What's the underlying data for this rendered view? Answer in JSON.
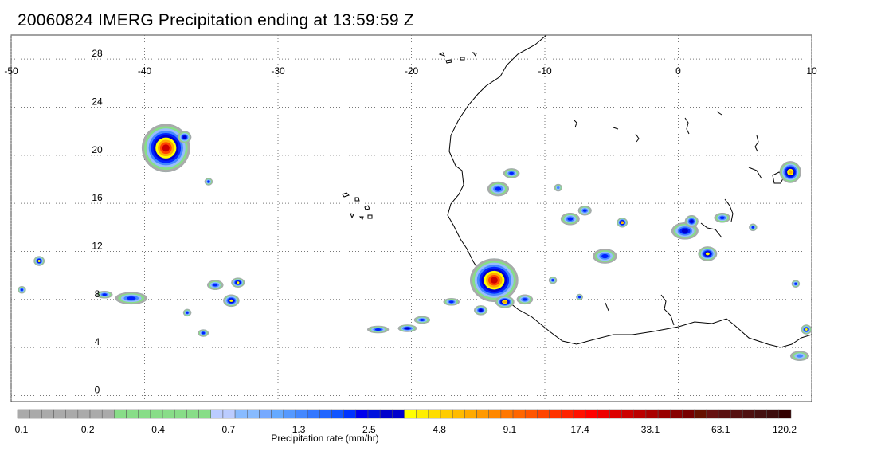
{
  "title": "20060824 IMERG Precipitation ending at 13:59:59 Z",
  "map": {
    "lon_labels": [
      "-50",
      "-40",
      "-30",
      "-20",
      "-10",
      "0",
      "10"
    ],
    "lat_labels": [
      "28",
      "24",
      "20",
      "16",
      "12",
      "8",
      "4",
      "0"
    ],
    "lon_values": [
      -50,
      -40,
      -30,
      -20,
      -10,
      0,
      10
    ],
    "lat_values": [
      28,
      24,
      20,
      16,
      12,
      8,
      4,
      0
    ],
    "lon_range": [
      -50,
      10
    ],
    "lat_range": [
      -0.5,
      30
    ],
    "gridlines": "dotted",
    "features": [
      "West African coastline",
      "Cape Verde islands",
      "Canary islands",
      "rivers and lakes"
    ]
  },
  "colorbar": {
    "label": "Precipitation rate (mm/hr)",
    "tick_labels": [
      "0.1",
      "0.2",
      "0.4",
      "0.7",
      "1.3",
      "2.5",
      "4.8",
      "9.1",
      "17.4",
      "33.1",
      "63.1",
      "120.2"
    ],
    "colors": [
      "#aaaaaa",
      "#aaaaaa",
      "#aaaaaa",
      "#aaaaaa",
      "#aaaaaa",
      "#aaaaaa",
      "#aaaaaa",
      "#aaaaaa",
      "#88dd88",
      "#88dd88",
      "#88dd88",
      "#88dd88",
      "#88dd88",
      "#88dd88",
      "#88dd88",
      "#88dd88",
      "#bbccff",
      "#bbccff",
      "#88bbff",
      "#88bbff",
      "#77aaff",
      "#66aaff",
      "#5599ff",
      "#4488ff",
      "#3377ff",
      "#2266ff",
      "#1155ff",
      "#0033ff",
      "#0000ee",
      "#0011dd",
      "#0000cc",
      "#0000cc",
      "#ffff00",
      "#ffee00",
      "#ffdd00",
      "#ffcc00",
      "#ffbb00",
      "#ffaa00",
      "#ff9900",
      "#ff8800",
      "#ff7700",
      "#ff6600",
      "#ff5500",
      "#ff4400",
      "#ff3300",
      "#ff2200",
      "#ff1100",
      "#ff0000",
      "#ee0000",
      "#dd0000",
      "#cc0000",
      "#bb0000",
      "#aa0000",
      "#990000",
      "#880000",
      "#770000",
      "#661100",
      "#661111",
      "#5a1010",
      "#551111",
      "#4d1010",
      "#441010",
      "#3d0d0d",
      "#330000"
    ]
  },
  "precip_cells": [
    {
      "lon": -38.4,
      "lat": 20.6,
      "rx": 1.8,
      "ry": 2.0,
      "peak": 33
    },
    {
      "lon": -37.0,
      "lat": 21.5,
      "rx": 0.5,
      "ry": 0.5,
      "peak": 4
    },
    {
      "lon": -35.2,
      "lat": 17.8,
      "rx": 0.3,
      "ry": 0.3,
      "peak": 3
    },
    {
      "lon": -47.9,
      "lat": 11.2,
      "rx": 0.4,
      "ry": 0.4,
      "peak": 5
    },
    {
      "lon": -49.2,
      "lat": 8.8,
      "rx": 0.3,
      "ry": 0.3,
      "peak": 3
    },
    {
      "lon": -41.0,
      "lat": 8.1,
      "rx": 1.2,
      "ry": 0.5,
      "peak": 3
    },
    {
      "lon": -43.0,
      "lat": 8.4,
      "rx": 0.6,
      "ry": 0.3,
      "peak": 2
    },
    {
      "lon": -33.5,
      "lat": 7.9,
      "rx": 0.6,
      "ry": 0.5,
      "peak": 8
    },
    {
      "lon": -33.0,
      "lat": 9.4,
      "rx": 0.5,
      "ry": 0.4,
      "peak": 6
    },
    {
      "lon": -34.7,
      "lat": 9.2,
      "rx": 0.6,
      "ry": 0.4,
      "peak": 2
    },
    {
      "lon": -35.6,
      "lat": 5.2,
      "rx": 0.4,
      "ry": 0.3,
      "peak": 3
    },
    {
      "lon": -36.8,
      "lat": 6.9,
      "rx": 0.3,
      "ry": 0.3,
      "peak": 2
    },
    {
      "lon": -22.5,
      "lat": 5.5,
      "rx": 0.8,
      "ry": 0.3,
      "peak": 3
    },
    {
      "lon": -20.3,
      "lat": 5.6,
      "rx": 0.7,
      "ry": 0.3,
      "peak": 4
    },
    {
      "lon": -19.2,
      "lat": 6.3,
      "rx": 0.6,
      "ry": 0.3,
      "peak": 3
    },
    {
      "lon": -17.0,
      "lat": 7.8,
      "rx": 0.6,
      "ry": 0.3,
      "peak": 2
    },
    {
      "lon": -13.8,
      "lat": 9.6,
      "rx": 1.8,
      "ry": 1.8,
      "peak": 33
    },
    {
      "lon": -13.0,
      "lat": 7.8,
      "rx": 0.7,
      "ry": 0.5,
      "peak": 9
    },
    {
      "lon": -14.8,
      "lat": 7.1,
      "rx": 0.5,
      "ry": 0.4,
      "peak": 4
    },
    {
      "lon": -11.5,
      "lat": 8.0,
      "rx": 0.6,
      "ry": 0.4,
      "peak": 3
    },
    {
      "lon": -13.5,
      "lat": 17.2,
      "rx": 0.8,
      "ry": 0.6,
      "peak": 2
    },
    {
      "lon": -12.5,
      "lat": 18.5,
      "rx": 0.6,
      "ry": 0.4,
      "peak": 2
    },
    {
      "lon": -8.1,
      "lat": 14.7,
      "rx": 0.7,
      "ry": 0.5,
      "peak": 3
    },
    {
      "lon": -7.0,
      "lat": 15.4,
      "rx": 0.5,
      "ry": 0.4,
      "peak": 2
    },
    {
      "lon": -5.5,
      "lat": 11.6,
      "rx": 0.9,
      "ry": 0.6,
      "peak": 3
    },
    {
      "lon": -4.2,
      "lat": 14.4,
      "rx": 0.4,
      "ry": 0.4,
      "peak": 10
    },
    {
      "lon": 0.5,
      "lat": 13.7,
      "rx": 1.0,
      "ry": 0.7,
      "peak": 4
    },
    {
      "lon": 1.0,
      "lat": 14.5,
      "rx": 0.5,
      "ry": 0.5,
      "peak": 4
    },
    {
      "lon": 2.2,
      "lat": 11.8,
      "rx": 0.7,
      "ry": 0.6,
      "peak": 6
    },
    {
      "lon": 3.3,
      "lat": 14.8,
      "rx": 0.6,
      "ry": 0.4,
      "peak": 3
    },
    {
      "lon": 5.6,
      "lat": 14.0,
      "rx": 0.3,
      "ry": 0.3,
      "peak": 2
    },
    {
      "lon": 8.4,
      "lat": 18.6,
      "rx": 0.8,
      "ry": 0.9,
      "peak": 12
    },
    {
      "lon": 8.8,
      "lat": 9.3,
      "rx": 0.3,
      "ry": 0.3,
      "peak": 3
    },
    {
      "lon": 9.6,
      "lat": 5.5,
      "rx": 0.4,
      "ry": 0.4,
      "peak": 5
    },
    {
      "lon": 9.1,
      "lat": 3.3,
      "rx": 0.7,
      "ry": 0.4,
      "peak": 1
    },
    {
      "lon": -9.4,
      "lat": 9.6,
      "rx": 0.3,
      "ry": 0.3,
      "peak": 2
    },
    {
      "lon": -7.4,
      "lat": 8.2,
      "rx": 0.25,
      "ry": 0.25,
      "peak": 3
    },
    {
      "lon": -9.0,
      "lat": 17.3,
      "rx": 0.3,
      "ry": 0.3,
      "peak": 1
    }
  ]
}
